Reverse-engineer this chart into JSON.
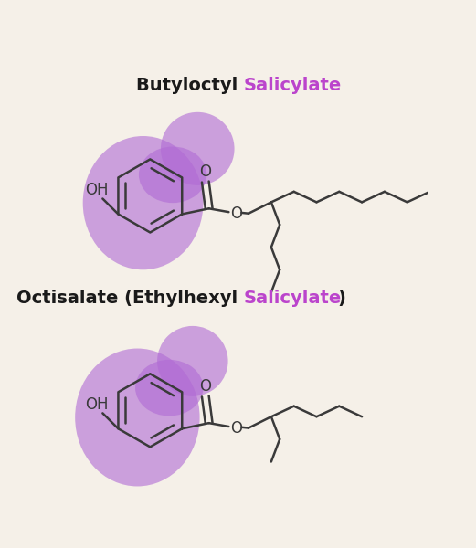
{
  "bg_color": "#f5f0e8",
  "line_color": "#3a3a3a",
  "purple_highlight": "#a855c8",
  "purple_text": "#bb44cc",
  "title1_black": "Butyloctyl ",
  "title1_purple": "Salicylate",
  "title2_black": "Octisalate (Ethylhexyl ",
  "title2_purple": "Salicylate",
  "title2_close": ")",
  "font_size_title": 14,
  "line_width": 1.8,
  "highlight_alpha": 0.6,
  "highlight_color": "#b06ad4"
}
